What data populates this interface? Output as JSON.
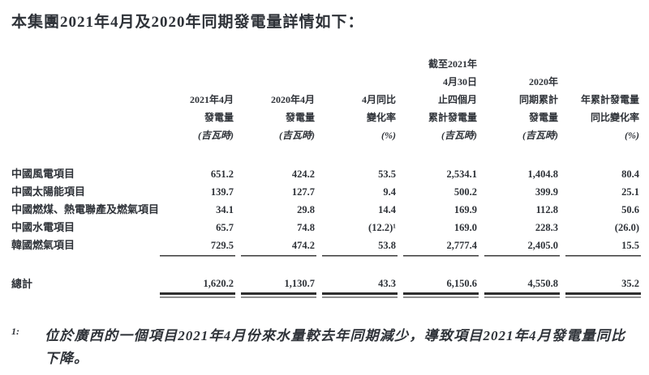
{
  "page": {
    "background_color": "#ffffff",
    "text_color": "#2e3238",
    "rule_dark_color": "#2e2e2e",
    "rule_gray_color": "#9a9a9a"
  },
  "title": "本集團2021年4月及2020年同期發電量詳情如下：",
  "table": {
    "columns": [
      {
        "lines": [
          "2021年4月",
          "發電量"
        ],
        "unit": "(吉瓦時)"
      },
      {
        "lines": [
          "2020年4月",
          "發電量"
        ],
        "unit": "(吉瓦時)"
      },
      {
        "lines": [
          "4月同比",
          "變化率"
        ],
        "unit": "(%)"
      },
      {
        "lines": [
          "截至2021年",
          "4月30日",
          "止四個月",
          "累計發電量"
        ],
        "unit": "(吉瓦時)"
      },
      {
        "lines": [
          "2020年",
          "同期累計",
          "發電量"
        ],
        "unit": "(吉瓦時)"
      },
      {
        "lines": [
          "年累計發電量",
          "同比變化率"
        ],
        "unit": "(%)"
      }
    ],
    "rows": [
      {
        "label": "中國風電項目",
        "values": [
          "651.2",
          "424.2",
          "53.5",
          "2,534.1",
          "1,404.8",
          "80.4"
        ]
      },
      {
        "label": "中國太陽能項目",
        "values": [
          "139.7",
          "127.7",
          "9.4",
          "500.2",
          "399.9",
          "25.1"
        ]
      },
      {
        "label": "中國燃煤、熱電聯產及燃氣項目",
        "values": [
          "34.1",
          "29.8",
          "14.4",
          "169.9",
          "112.8",
          "50.6"
        ]
      },
      {
        "label": "中國水電項目",
        "values": [
          "65.7",
          "74.8",
          "(12.2)¹",
          "169.0",
          "228.3",
          "(26.0)"
        ]
      },
      {
        "label": "韓國燃氣項目",
        "values": [
          "729.5",
          "474.2",
          "53.8",
          "2,777.4",
          "2,405.0",
          "15.5"
        ]
      }
    ],
    "total": {
      "label": "總計",
      "values": [
        "1,620.2",
        "1,130.7",
        "43.3",
        "6,150.6",
        "4,550.8",
        "35.2"
      ]
    }
  },
  "footnote": {
    "marker": "1:",
    "text": "位於廣西的一個項目2021年4月份來水量較去年同期減少，導致項目2021年4月發電量同比下降。"
  }
}
